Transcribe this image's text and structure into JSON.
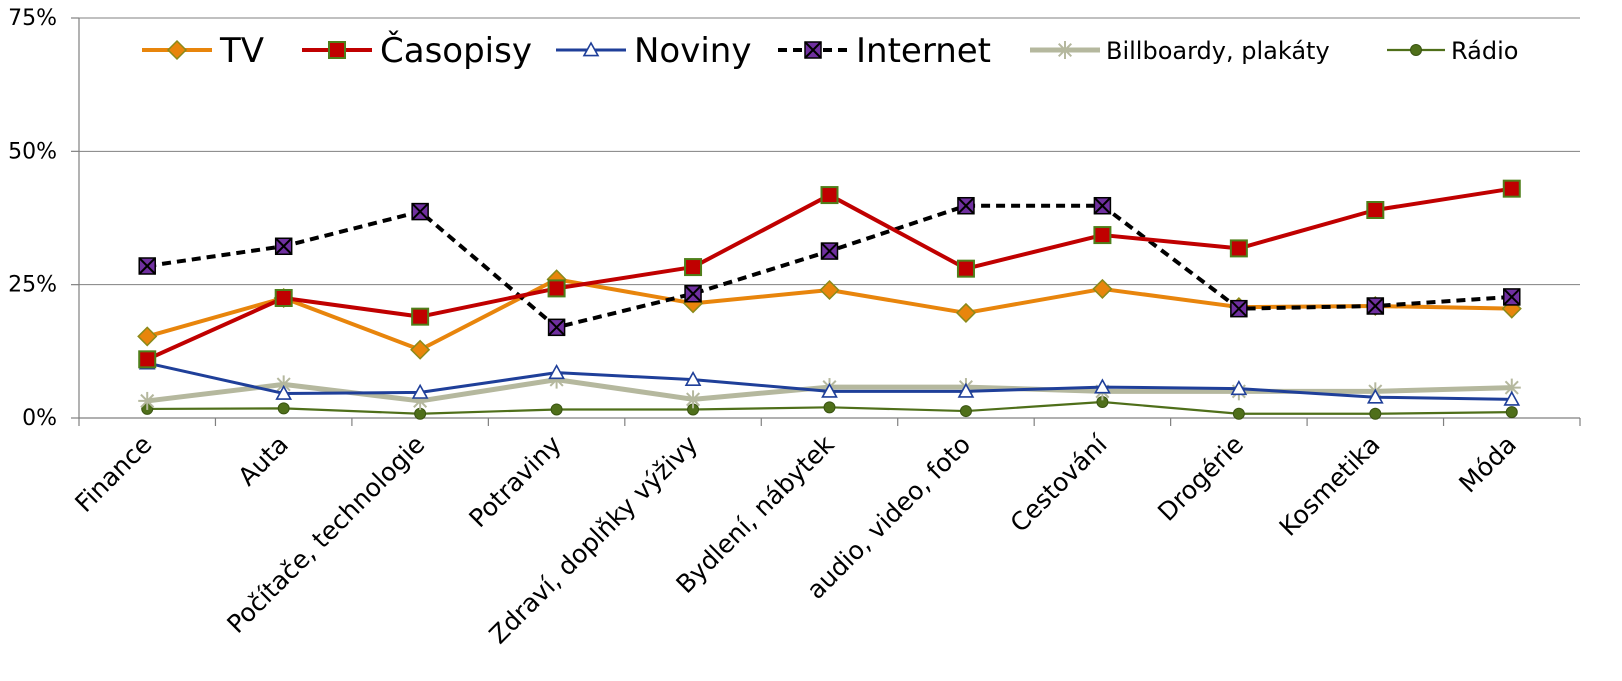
{
  "chart_data": {
    "type": "line",
    "title": "",
    "xlabel": "",
    "ylabel": "",
    "ylim": [
      0,
      75
    ],
    "yticks": [
      "0%",
      "25%",
      "50%",
      "75%"
    ],
    "ytick_values": [
      0,
      25,
      50,
      75
    ],
    "grid": "horizontal at 50%, 25%",
    "legend_position": "top",
    "categories": [
      "Finance",
      "Auta",
      "Počítače, technologie",
      "Potraviny",
      "Zdraví, doplňky  výživy",
      "Bydlení, nábytek",
      "audio, video, foto",
      "Cestování",
      "Drogérie",
      "Kosmetika",
      "Móda"
    ],
    "series": [
      {
        "name": "TV",
        "color": "#E8850C",
        "marker": "diamond",
        "line": "solid",
        "values": [
          15.3,
          22.5,
          12.8,
          26.0,
          21.5,
          24.0,
          19.7,
          24.2,
          20.8,
          21.0,
          20.5
        ]
      },
      {
        "name": "Časopisy",
        "color": "#C00000",
        "marker": "square",
        "line": "solid",
        "values": [
          11.0,
          22.5,
          19.0,
          24.3,
          28.3,
          41.8,
          28.0,
          34.3,
          31.8,
          39.0,
          43.0
        ]
      },
      {
        "name": "Noviny",
        "color": "#1F3F99",
        "marker": "triangle",
        "line": "solid",
        "values": [
          10.3,
          4.6,
          4.8,
          8.5,
          7.2,
          5.0,
          5.0,
          5.8,
          5.5,
          3.9,
          3.5
        ]
      },
      {
        "name": "Internet",
        "color": "#000000",
        "marker": "x-square",
        "line": "dashed",
        "values": [
          28.5,
          32.2,
          38.7,
          17.0,
          23.3,
          31.3,
          39.8,
          39.8,
          20.5,
          21.0,
          22.7
        ]
      },
      {
        "name": "Billboardy, plakáty",
        "color": "#B5B89E",
        "marker": "star",
        "line": "solid",
        "values": [
          3.2,
          6.3,
          3.2,
          7.2,
          3.5,
          5.8,
          5.8,
          5.0,
          5.0,
          5.0,
          5.7
        ]
      },
      {
        "name": "Rádio",
        "color": "#4F6F1A",
        "marker": "circle",
        "line": "solid",
        "values": [
          1.7,
          1.8,
          0.8,
          1.6,
          1.6,
          2.0,
          1.3,
          3.0,
          0.8,
          0.8,
          1.1
        ]
      }
    ]
  }
}
